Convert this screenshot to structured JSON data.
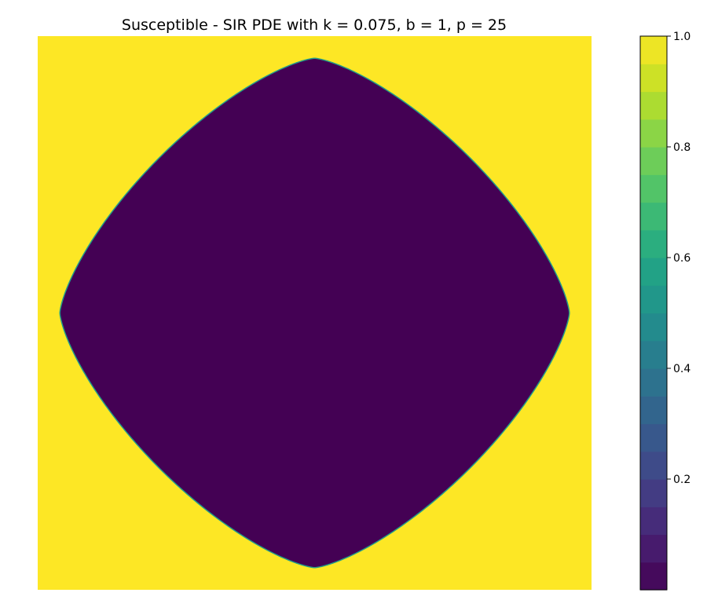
{
  "chart_data": {
    "type": "heatmap",
    "title": "Susceptible - SIR PDE with k = 0.075, b = 1, p = 25",
    "xlabel": "",
    "ylabel": "",
    "axes_visible": false,
    "colormap": "viridis",
    "colorbar": {
      "range": [
        0.0,
        1.0
      ],
      "levels": 20,
      "ticks": [
        0.2,
        0.4,
        0.6,
        0.8,
        1.0
      ],
      "tick_labels": [
        "0.2",
        "0.4",
        "0.6",
        "0.8",
        "1.0"
      ],
      "location": "right"
    },
    "field": {
      "description_values": {
        "outside": 1.0,
        "inside": 0.0
      },
      "region_shape": "rounded diamond (superellipse, exponent ~1.4) centred in domain",
      "domain": [
        0,
        1
      ],
      "center": [
        0.5,
        0.5
      ],
      "radius": 0.46,
      "exponent": 1.4
    },
    "colors": {
      "high": "#fde725",
      "low": "#440154"
    }
  }
}
